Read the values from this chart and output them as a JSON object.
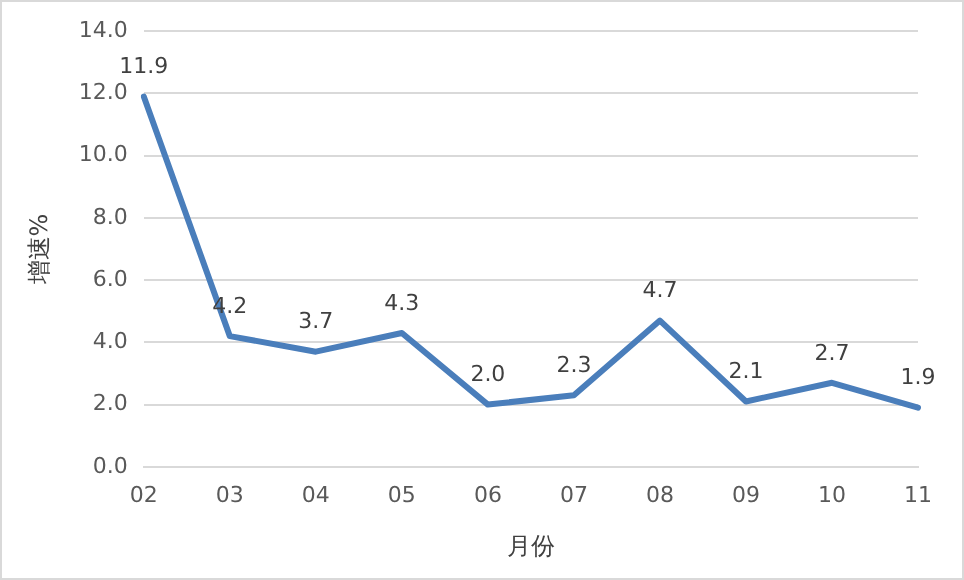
{
  "chart_data": {
    "type": "line",
    "xlabel": "月份",
    "ylabel": "增速%",
    "categories": [
      "02",
      "03",
      "04",
      "05",
      "06",
      "07",
      "08",
      "09",
      "10",
      "11"
    ],
    "series": [
      {
        "color": "#4a7ebb",
        "values": [
          11.9,
          4.2,
          3.7,
          4.3,
          2.0,
          2.3,
          4.7,
          2.1,
          2.7,
          1.9
        ],
        "value_labels": [
          "11.9",
          "4.2",
          "3.7",
          "4.3",
          "2.0",
          "2.3",
          "4.7",
          "2.1",
          "2.7",
          "1.9"
        ]
      }
    ],
    "ylim": [
      0,
      14
    ],
    "yticks": [
      {
        "value": 0,
        "label": "0.0"
      },
      {
        "value": 2,
        "label": "2.0"
      },
      {
        "value": 4,
        "label": "4.0"
      },
      {
        "value": 6,
        "label": "6.0"
      },
      {
        "value": 8,
        "label": "8.0"
      },
      {
        "value": 10,
        "label": "10.0"
      },
      {
        "value": 12,
        "label": "12.0"
      },
      {
        "value": 14,
        "label": "14.0"
      }
    ],
    "grid": "y",
    "legend": false,
    "marker": "none",
    "line_style": "solid"
  }
}
